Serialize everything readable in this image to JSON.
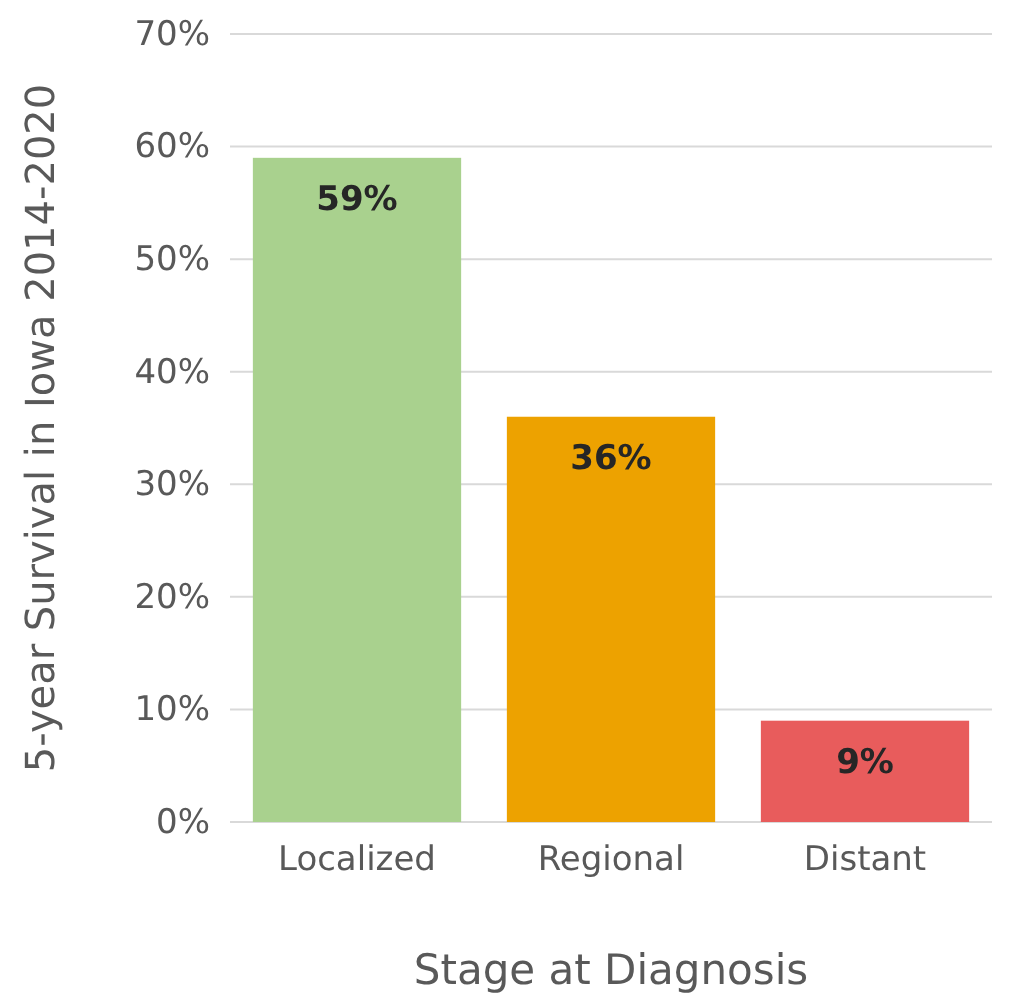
{
  "chart_data": {
    "type": "bar",
    "xlabel": "Stage at Diagnosis",
    "ylabel": "5-year Survival in Iowa 2014-2020",
    "categories": [
      "Localized",
      "Regional",
      "Distant"
    ],
    "values": [
      59,
      36,
      9
    ],
    "colors": [
      "#a9d18e",
      "#eda200",
      "#e85c5c"
    ],
    "ylim": [
      0,
      70
    ],
    "yticks": [
      {
        "value": 0,
        "label": "0%"
      },
      {
        "value": 10,
        "label": "10%"
      },
      {
        "value": 20,
        "label": "20%"
      },
      {
        "value": 30,
        "label": "30%"
      },
      {
        "value": 40,
        "label": "40%"
      },
      {
        "value": 50,
        "label": "50%"
      },
      {
        "value": 60,
        "label": "60%"
      },
      {
        "value": 70,
        "label": "70%"
      }
    ],
    "value_labels": [
      "59%",
      "36%",
      "9%"
    ],
    "grid": "y"
  }
}
